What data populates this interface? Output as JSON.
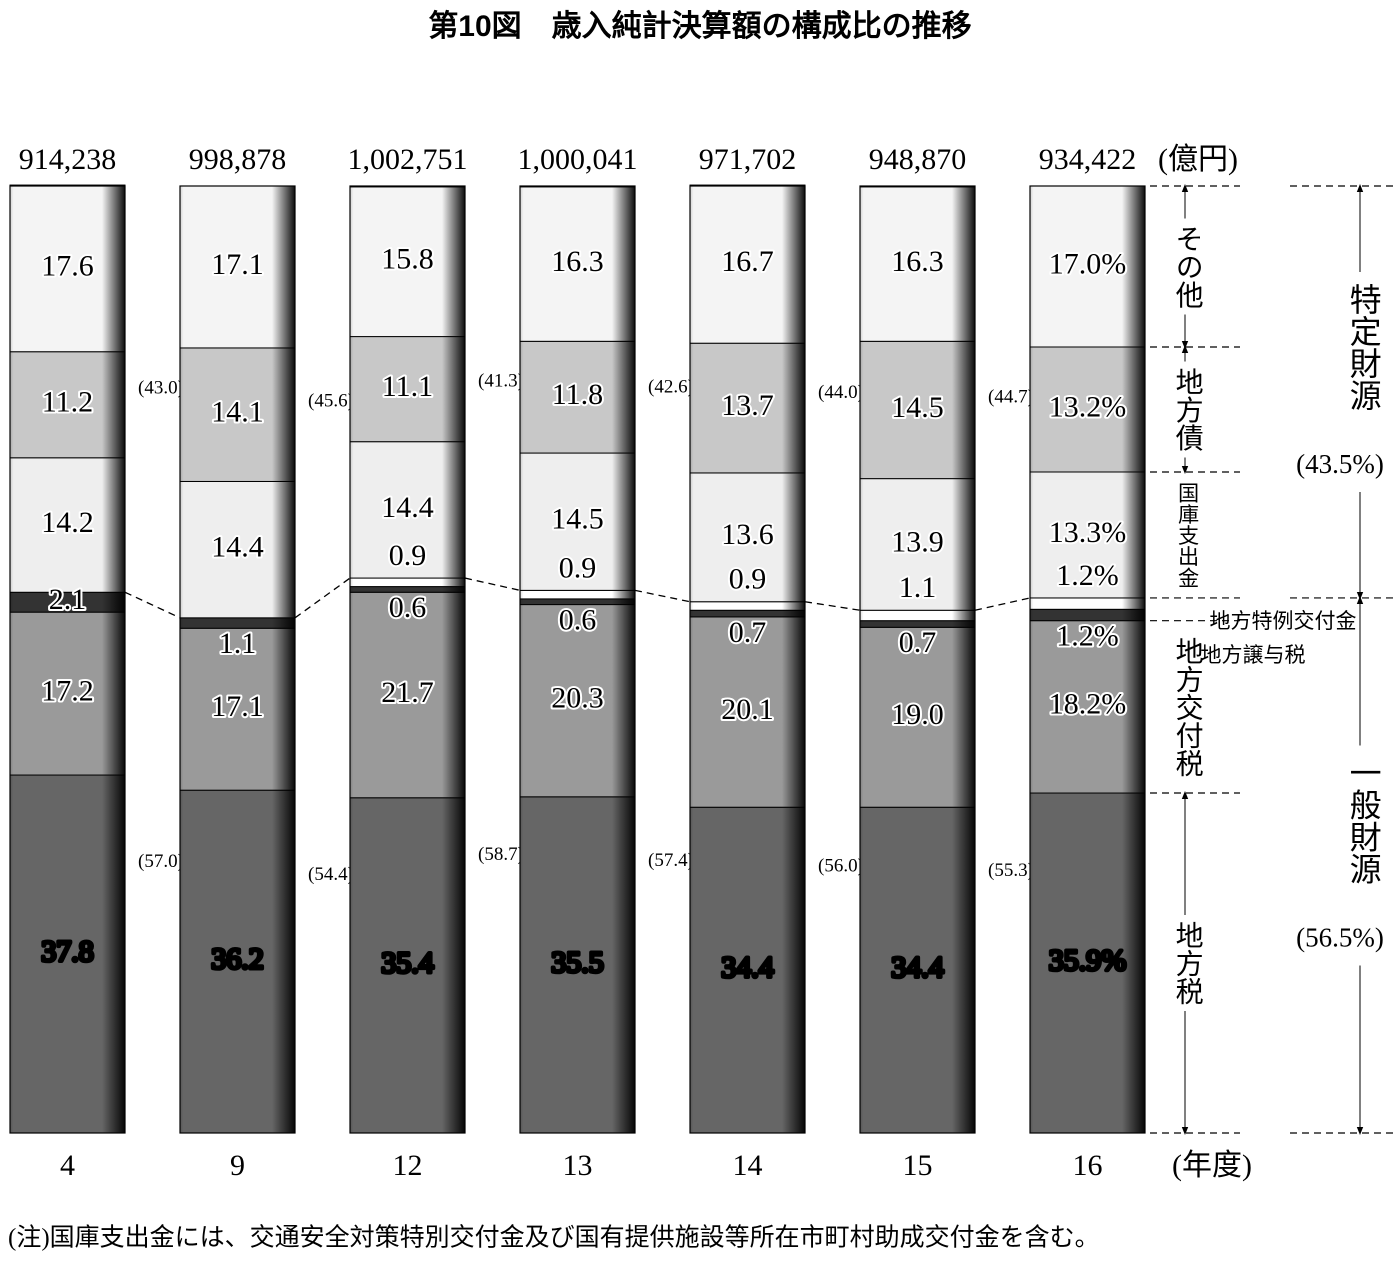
{
  "chart_data": {
    "type": "stacked_bar",
    "title": "第10図　歳入純計決算額の構成比の推移",
    "unit_label": "(億円)",
    "x_label": "(年度)",
    "note": "(注)国庫支出金には、交通安全対策特別交付金及び国有提供施設等所在市町村助成交付金を含む。",
    "categories": [
      "4",
      "9",
      "12",
      "13",
      "14",
      "15",
      "16"
    ],
    "totals": {
      "values": [
        914238,
        998878,
        1002751,
        1000041,
        971702,
        948870,
        934422
      ],
      "value_labels": [
        "914,238",
        "998,878",
        "1,002,751",
        "1,000,041",
        "971,702",
        "948,870",
        "934,422"
      ]
    },
    "ylim": [
      0,
      100
    ],
    "series": [
      {
        "name": "地方税",
        "color": "#666666",
        "values": [
          37.8,
          36.2,
          35.4,
          35.5,
          34.4,
          34.4,
          35.9
        ],
        "value_labels": [
          "37.8",
          "36.2",
          "35.4",
          "35.5",
          "34.4",
          "34.4",
          "35.9%"
        ]
      },
      {
        "name": "地方交付税",
        "color": "#9a9a9a",
        "values": [
          17.2,
          17.1,
          21.7,
          20.3,
          20.1,
          19.0,
          18.2
        ],
        "value_labels": [
          "17.2",
          "17.1",
          "21.7",
          "20.3",
          "20.1",
          "19.0",
          "18.2%"
        ]
      },
      {
        "name": "地方譲与税",
        "color": "#333333",
        "values": [
          2.1,
          1.1,
          0.6,
          0.6,
          0.7,
          0.7,
          1.2
        ],
        "value_labels": [
          "2.1",
          "1.1",
          "0.6",
          "0.6",
          "0.7",
          "0.7",
          "1.2%"
        ]
      },
      {
        "name": "地方特例交付金",
        "color": "#ffffff",
        "values": [
          null,
          null,
          0.9,
          0.9,
          0.9,
          1.1,
          1.2
        ],
        "value_labels": [
          null,
          null,
          "0.9",
          "0.9",
          "0.9",
          "1.1",
          "1.2%"
        ]
      },
      {
        "name": "国庫支出金",
        "color": "#eeeeee",
        "values": [
          14.2,
          14.4,
          14.4,
          14.5,
          13.6,
          13.9,
          13.3
        ],
        "value_labels": [
          "14.2",
          "14.4",
          "14.4",
          "14.5",
          "13.6",
          "13.9",
          "13.3%"
        ]
      },
      {
        "name": "地方債",
        "color": "#c8c8c8",
        "values": [
          11.2,
          14.1,
          11.1,
          11.8,
          13.7,
          14.5,
          13.2
        ],
        "value_labels": [
          "11.2",
          "14.1",
          "11.1",
          "11.8",
          "13.7",
          "14.5",
          "13.2%"
        ]
      },
      {
        "name": "その他",
        "color": "#f4f4f4",
        "values": [
          17.6,
          17.1,
          15.8,
          16.3,
          16.7,
          16.3,
          17.0
        ],
        "value_labels": [
          "17.6",
          "17.1",
          "15.8",
          "16.3",
          "16.7",
          "16.3",
          "17.0%"
        ]
      }
    ],
    "group_shares": [
      {
        "name": "特定財源",
        "values": [
          43.0,
          45.6,
          41.3,
          42.6,
          44.0,
          44.7,
          43.5
        ],
        "value_labels": [
          "(43.0)",
          "(45.6)",
          "(41.3)",
          "(42.6)",
          "(44.0)",
          "(44.7)",
          "(43.5%)"
        ]
      },
      {
        "name": "一般財源",
        "values": [
          57.0,
          54.4,
          58.7,
          57.4,
          56.0,
          55.3,
          56.5
        ],
        "value_labels": [
          "(57.0)",
          "(54.4)",
          "(58.7)",
          "(57.4)",
          "(56.0)",
          "(55.3)",
          "(56.5%)"
        ]
      }
    ]
  }
}
